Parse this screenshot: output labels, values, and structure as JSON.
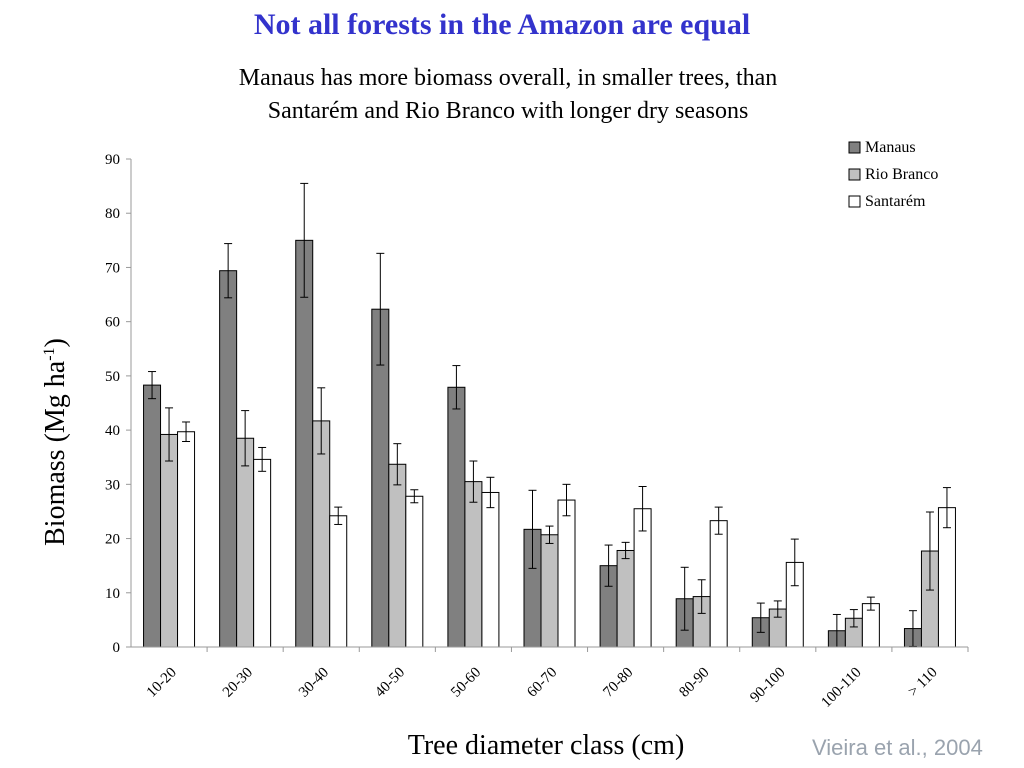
{
  "title": "Not all forests in the Amazon are equal",
  "subtitle_lines": [
    "Manaus has more biomass overall, in smaller trees, than",
    "Santarém and Rio Branco with longer dry seasons"
  ],
  "source": "Vieira et al., 2004",
  "colors": {
    "manaus": "#808080",
    "rio_branco": "#c0c0c0",
    "santarem": "#ffffff",
    "title": "#3333cc",
    "source": "#9aa3ae"
  },
  "chart_data": {
    "type": "bar",
    "xlabel": "Tree diameter class (cm)",
    "ylabel_main": "Biomass (Mg ha",
    "ylabel_sup": "-1",
    "ylabel_end": ")",
    "ylim": [
      0,
      90
    ],
    "yticks": [
      "0",
      "10",
      "20",
      "30",
      "40",
      "50",
      "60",
      "70",
      "80",
      "90"
    ],
    "categories": [
      "10-20",
      "20-30",
      "30-40",
      "40-50",
      "50-60",
      "60-70",
      "70-80",
      "80-90",
      "90-100",
      "100-110",
      "> 110"
    ],
    "legend_position": "top-right",
    "series": [
      {
        "name": "Manaus",
        "color": "#808080",
        "values": [
          48.3,
          69.4,
          75.0,
          62.3,
          47.9,
          21.7,
          15.0,
          8.9,
          5.4,
          3.0,
          3.4
        ],
        "errors": [
          2.5,
          5.0,
          10.5,
          10.3,
          4.0,
          7.2,
          3.8,
          5.8,
          2.7,
          3.0,
          3.3
        ]
      },
      {
        "name": "Rio Branco",
        "color": "#c0c0c0",
        "values": [
          39.2,
          38.5,
          41.7,
          33.7,
          30.5,
          20.7,
          17.8,
          9.3,
          7.0,
          5.3,
          17.7
        ],
        "errors": [
          4.9,
          5.1,
          6.1,
          3.8,
          3.8,
          1.6,
          1.5,
          3.1,
          1.5,
          1.6,
          7.2
        ]
      },
      {
        "name": "Santarém",
        "color": "#ffffff",
        "values": [
          39.7,
          34.6,
          24.2,
          27.8,
          28.5,
          27.1,
          25.5,
          23.3,
          15.6,
          8.0,
          25.7
        ],
        "errors": [
          1.8,
          2.2,
          1.6,
          1.2,
          2.8,
          2.9,
          4.1,
          2.5,
          4.3,
          1.2,
          3.7
        ]
      }
    ]
  }
}
